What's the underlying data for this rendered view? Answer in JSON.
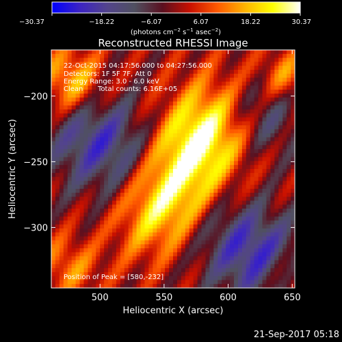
{
  "chart_data": {
    "type": "heatmap",
    "title": "Reconstructed RHESSI Image",
    "xlabel": "Heliocentric X (arcsec)",
    "ylabel": "Heliocentric Y (arcsec)",
    "xlim": [
      462,
      652
    ],
    "ylim": [
      -346,
      -165
    ],
    "xticks": [
      500,
      550,
      600,
      650
    ],
    "yticks": [
      -200,
      -250,
      -300
    ],
    "xtick_labels": [
      "500",
      "550",
      "600",
      "650"
    ],
    "ytick_labels": [
      "−200",
      "−250",
      "−300"
    ],
    "colorbar": {
      "range": [
        -30.37,
        30.37
      ],
      "tick_values": [
        -30.37,
        -18.22,
        -6.07,
        6.07,
        18.22,
        30.37
      ],
      "tick_labels": [
        "−30.37",
        "−18.22",
        "−6.07",
        "6.07",
        "18.22",
        "30.37"
      ],
      "unit_prefix": "(photons cm",
      "unit_sup1": "−2",
      "unit_mid1": " s",
      "unit_sup2": "−1",
      "unit_mid2": " asec",
      "unit_sup3": "−2",
      "unit_suffix": ")",
      "colormap": [
        "#0000ff",
        "#3b23c4",
        "#53448c",
        "#505060",
        "#5a1020",
        "#c81000",
        "#ff5a00",
        "#ffb400",
        "#ffff00",
        "#ffffff"
      ]
    },
    "annotations": {
      "time_range": "22-Oct-2015 04:17:56.000 to 04:27:56.000",
      "detectors": "Detectors: 1F 5F 7F, Att 0",
      "energy_range": "Energy Range: 3.0 - 6.0 keV",
      "method": "Clean",
      "total_counts": "Total counts: 6.16E+05",
      "peak_position": "Position of Peak = [580,-232]"
    },
    "peak": {
      "x": 580,
      "y": -232
    },
    "field_model": {
      "grid": 60,
      "fringe_direction": [
        0.55,
        0.84
      ],
      "fringe_wavelength": 25.6,
      "components": [
        {
          "x": 580,
          "y": -232,
          "amplitude": 30.37,
          "sigma_along": 32,
          "sigma_across": 24
        },
        {
          "x": 548,
          "y": -285,
          "amplitude": 22,
          "sigma_along": 28,
          "sigma_across": 22
        },
        {
          "x": 500,
          "y": -235,
          "amplitude": -20,
          "sigma_along": 26,
          "sigma_across": 30
        },
        {
          "x": 478,
          "y": -190,
          "amplitude": 20,
          "sigma_along": 18,
          "sigma_across": 18
        },
        {
          "x": 620,
          "y": -320,
          "amplitude": -22,
          "sigma_along": 24,
          "sigma_across": 32
        },
        {
          "x": 625,
          "y": -215,
          "amplitude": -14,
          "sigma_along": 22,
          "sigma_across": 22
        },
        {
          "x": 645,
          "y": -185,
          "amplitude": 14,
          "sigma_along": 14,
          "sigma_across": 14
        },
        {
          "x": 475,
          "y": -330,
          "amplitude": 12,
          "sigma_along": 16,
          "sigma_across": 18
        },
        {
          "x": 650,
          "y": -340,
          "amplitude": 14,
          "sigma_along": 14,
          "sigma_across": 16
        }
      ]
    }
  },
  "footer": {
    "timestamp": "21-Sep-2017 05:18"
  }
}
